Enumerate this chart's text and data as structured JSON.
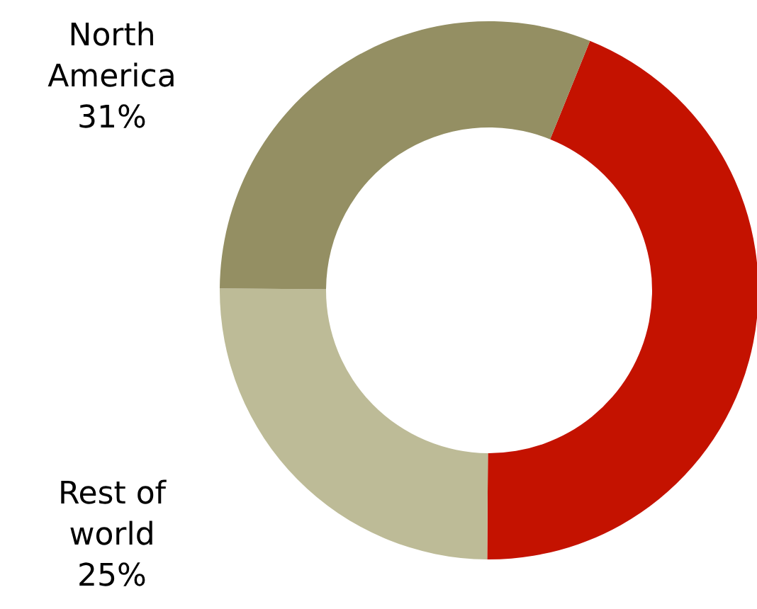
{
  "chart_data": {
    "type": "donut",
    "categories": [
      null,
      "Rest of world",
      "North America"
    ],
    "values": [
      44,
      25,
      31
    ],
    "colors": [
      "#c41200",
      "#bdbb97",
      "#948f63"
    ],
    "value_labels": [
      null,
      "25%",
      "31%"
    ]
  }
}
